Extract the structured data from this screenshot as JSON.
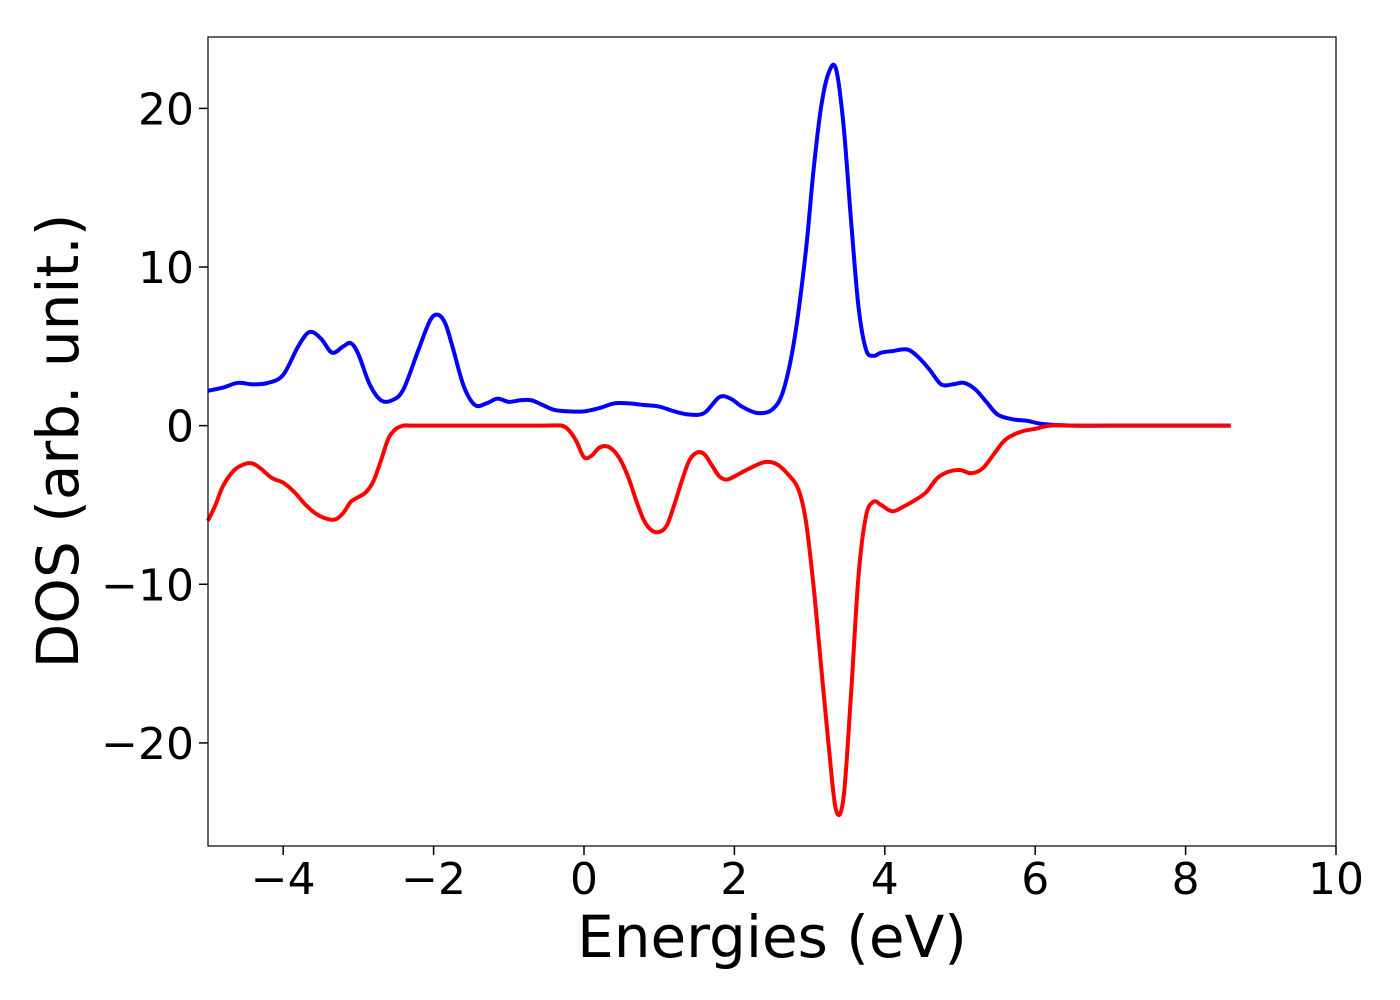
{
  "chart_data": {
    "type": "line",
    "title": "",
    "xlabel": "Energies (eV)",
    "ylabel": "DOS (arb. unit.)",
    "xlim": [
      -5,
      10
    ],
    "ylim": [
      -26.5,
      24.5
    ],
    "xticks": [
      -4,
      -2,
      0,
      2,
      4,
      6,
      8,
      10
    ],
    "yticks": [
      -20,
      -10,
      0,
      10,
      20
    ],
    "xtick_labels": [
      "−4",
      "−2",
      "0",
      "2",
      "4",
      "6",
      "8",
      "10"
    ],
    "ytick_labels": [
      "−20",
      "−10",
      "0",
      "10",
      "20"
    ],
    "grid": false,
    "legend": false,
    "series": [
      {
        "color": "#0000ff",
        "x": [
          -5.0,
          -4.8,
          -4.6,
          -4.4,
          -4.2,
          -4.0,
          -3.8,
          -3.65,
          -3.5,
          -3.35,
          -3.2,
          -3.1,
          -3.0,
          -2.85,
          -2.7,
          -2.55,
          -2.4,
          -2.2,
          -2.05,
          -1.95,
          -1.85,
          -1.75,
          -1.6,
          -1.45,
          -1.3,
          -1.15,
          -1.0,
          -0.85,
          -0.7,
          -0.55,
          -0.4,
          -0.2,
          0.0,
          0.2,
          0.4,
          0.6,
          0.8,
          1.0,
          1.2,
          1.4,
          1.6,
          1.8,
          1.95,
          2.1,
          2.3,
          2.5,
          2.65,
          2.8,
          2.95,
          3.05,
          3.15,
          3.25,
          3.35,
          3.45,
          3.55,
          3.65,
          3.75,
          3.85,
          3.95,
          4.1,
          4.3,
          4.45,
          4.6,
          4.75,
          4.9,
          5.05,
          5.2,
          5.35,
          5.5,
          5.7,
          5.9,
          6.1,
          6.5,
          7.0,
          7.5,
          8.0,
          8.6
        ],
        "values": [
          2.2,
          2.4,
          2.7,
          2.6,
          2.7,
          3.2,
          5.0,
          5.9,
          5.5,
          4.6,
          5.0,
          5.2,
          4.5,
          2.6,
          1.6,
          1.6,
          2.3,
          4.8,
          6.6,
          7.0,
          6.5,
          5.0,
          2.5,
          1.3,
          1.4,
          1.7,
          1.5,
          1.6,
          1.6,
          1.3,
          1.0,
          0.9,
          0.9,
          1.1,
          1.4,
          1.4,
          1.3,
          1.2,
          0.9,
          0.7,
          0.8,
          1.8,
          1.7,
          1.2,
          0.8,
          1.0,
          2.2,
          5.5,
          11.0,
          16.0,
          20.0,
          22.2,
          22.5,
          19.0,
          13.0,
          7.5,
          4.8,
          4.4,
          4.6,
          4.7,
          4.8,
          4.3,
          3.5,
          2.6,
          2.6,
          2.7,
          2.3,
          1.5,
          0.7,
          0.4,
          0.3,
          0.1,
          0.0,
          0.0,
          0.0,
          0.0,
          0.0
        ]
      },
      {
        "color": "#ff0000",
        "x": [
          -5.0,
          -4.9,
          -4.8,
          -4.65,
          -4.5,
          -4.4,
          -4.3,
          -4.15,
          -4.0,
          -3.85,
          -3.7,
          -3.55,
          -3.4,
          -3.3,
          -3.2,
          -3.1,
          -3.0,
          -2.9,
          -2.8,
          -2.7,
          -2.6,
          -2.5,
          -2.4,
          -2.3,
          -2.2,
          -1.5,
          -1.0,
          -0.5,
          -0.3,
          -0.2,
          -0.1,
          0.0,
          0.1,
          0.2,
          0.3,
          0.4,
          0.5,
          0.6,
          0.7,
          0.8,
          0.9,
          1.0,
          1.1,
          1.2,
          1.3,
          1.4,
          1.5,
          1.6,
          1.7,
          1.8,
          1.9,
          2.0,
          2.2,
          2.4,
          2.55,
          2.7,
          2.85,
          2.95,
          3.05,
          3.15,
          3.25,
          3.35,
          3.45,
          3.55,
          3.65,
          3.75,
          3.85,
          3.95,
          4.1,
          4.25,
          4.4,
          4.55,
          4.7,
          4.85,
          5.0,
          5.15,
          5.3,
          5.45,
          5.6,
          5.8,
          6.0,
          6.2,
          6.5,
          7.0,
          7.5,
          8.0,
          8.6
        ],
        "values": [
          -6.0,
          -5.0,
          -3.8,
          -2.8,
          -2.4,
          -2.4,
          -2.7,
          -3.3,
          -3.6,
          -4.2,
          -5.0,
          -5.6,
          -5.9,
          -5.9,
          -5.5,
          -4.8,
          -4.5,
          -4.2,
          -3.5,
          -2.2,
          -0.8,
          -0.2,
          0.0,
          0.0,
          0.0,
          0.0,
          0.0,
          0.0,
          0.0,
          -0.3,
          -1.0,
          -2.0,
          -1.9,
          -1.4,
          -1.3,
          -1.6,
          -2.3,
          -3.4,
          -4.8,
          -6.0,
          -6.6,
          -6.7,
          -6.3,
          -5.0,
          -3.5,
          -2.2,
          -1.7,
          -1.8,
          -2.5,
          -3.2,
          -3.4,
          -3.2,
          -2.7,
          -2.3,
          -2.4,
          -3.0,
          -4.0,
          -6.0,
          -10.0,
          -15.0,
          -20.0,
          -24.2,
          -23.5,
          -17.0,
          -9.5,
          -5.7,
          -4.8,
          -5.0,
          -5.4,
          -5.1,
          -4.7,
          -4.2,
          -3.3,
          -2.9,
          -2.8,
          -3.0,
          -2.7,
          -1.8,
          -0.9,
          -0.4,
          -0.2,
          0.0,
          0.0,
          0.0,
          0.0,
          0.0,
          0.0
        ]
      }
    ]
  }
}
